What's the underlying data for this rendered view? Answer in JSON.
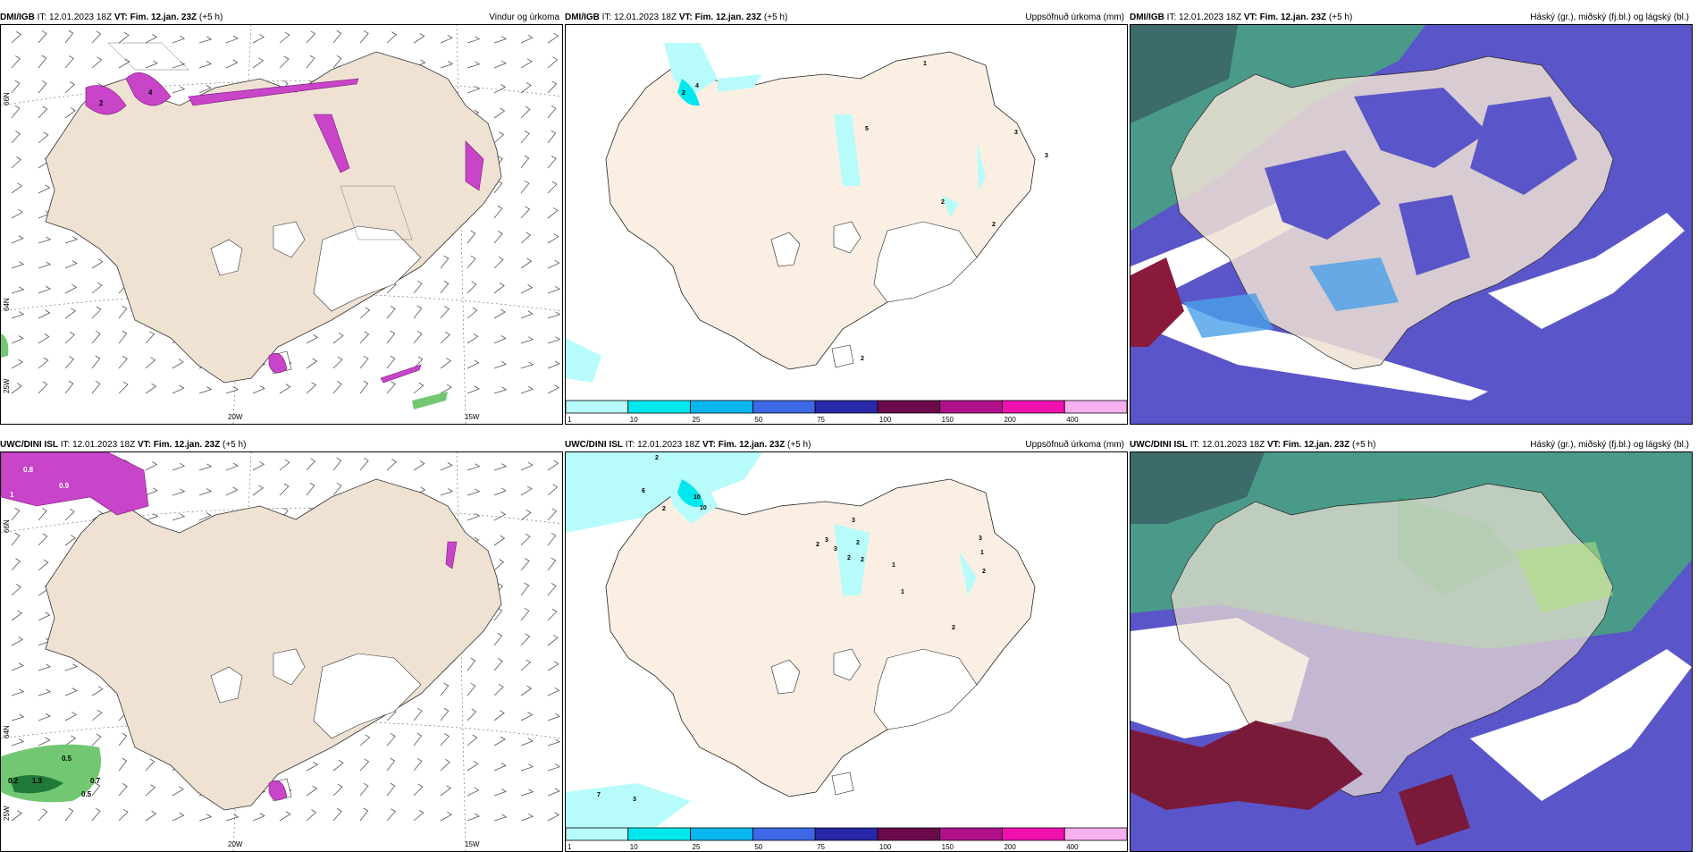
{
  "panels": [
    {
      "model": "DMI/IGB",
      "it_label": "IT:",
      "it_value": "12.01.2023 18Z",
      "vt_label": "VT:",
      "vt_value": "Fim. 12.jan. 23Z",
      "lead": "(+5 h)",
      "title": "Vindur og úrkoma"
    },
    {
      "model": "DMI/IGB",
      "it_label": "IT:",
      "it_value": "12.01.2023 18Z",
      "vt_label": "VT:",
      "vt_value": "Fim. 12.jan. 23Z",
      "lead": "(+5 h)",
      "title": "Uppsöfnuð úrkoma (mm)"
    },
    {
      "model": "DMI/IGB",
      "it_label": "IT:",
      "it_value": "12.01.2023 18Z",
      "vt_label": "VT:",
      "vt_value": "Fim. 12.jan. 23Z",
      "lead": "(+5 h)",
      "title": "Háský (gr.), miðský (fj.bl.) og lágský (bl.)"
    },
    {
      "model": "UWC/DINI ISL",
      "it_label": "IT:",
      "it_value": "12.01.2023 18Z",
      "vt_label": "VT:",
      "vt_value": "Fim. 12.jan. 23Z",
      "lead": "(+5 h)",
      "title": ""
    },
    {
      "model": "UWC/DINI ISL",
      "it_label": "IT:",
      "it_value": "12.01.2023 18Z",
      "vt_label": "VT:",
      "vt_value": "Fim. 12.jan. 23Z",
      "lead": "(+5 h)",
      "title": "Uppsöfnuð úrkoma (mm)"
    },
    {
      "model": "UWC/DINI ISL",
      "it_label": "IT:",
      "it_value": "12.01.2023 18Z",
      "vt_label": "VT:",
      "vt_value": "Fim. 12.jan. 23Z",
      "lead": "(+5 h)",
      "title": "Háský (gr.), miðský (fj.bl.) og lágský (bl.)"
    }
  ],
  "axis_labels": {
    "lat66": "66N",
    "lat64": "64N",
    "lon25": "25W",
    "lon20": "20W",
    "lon15": "15W"
  },
  "colorbar": {
    "ticks": [
      "1",
      "10",
      "25",
      "50",
      "75",
      "100",
      "150",
      "200",
      "400"
    ],
    "colors": [
      "#b7fbfb",
      "#00e8ee",
      "#08b7ee",
      "#3d68e6",
      "#2828a8",
      "#6a0a4a",
      "#b0108a",
      "#f010b0",
      "#f6b0f0"
    ]
  },
  "precip_labels_dmi": [
    "1",
    "5",
    "3",
    "3",
    "2",
    "2",
    "2",
    "4",
    "2"
  ],
  "precip_labels_uwc": [
    "2",
    "6",
    "2",
    "10",
    "10",
    "3",
    "3",
    "3",
    "2",
    "2",
    "2",
    "1",
    "3",
    "1",
    "2",
    "2",
    "2",
    "1",
    "7",
    "3"
  ],
  "wind_rain_labels_dmi": [
    "2",
    "4"
  ],
  "wind_rain_labels_uwc": [
    "0.8",
    "0.9",
    "1",
    "0.5",
    "1.3",
    "0.7",
    "0.5",
    "0.2"
  ],
  "colors": {
    "land": "#efe2d3",
    "sea": "#ffffff",
    "glacier": "#ffffff",
    "precip_land": "#fbefe3"
  }
}
